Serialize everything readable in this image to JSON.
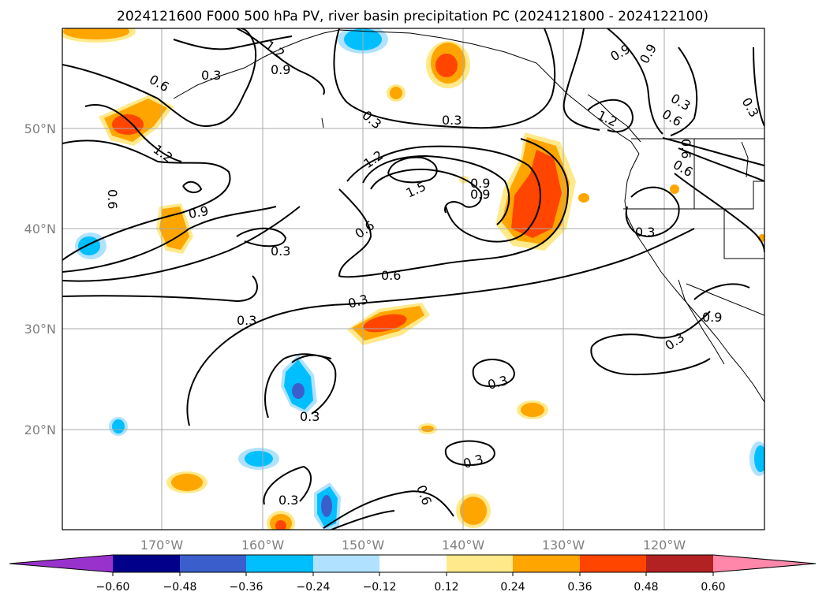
{
  "title": "2024121600 F000 500 hPa PV, river basin precipitation PC (2024121800 - 2024122100)",
  "lat_labels": [
    "50°N",
    "40°N",
    "30°N",
    "20°N"
  ],
  "lon_labels": [
    "170°W",
    "160°W",
    "150°W",
    "140°W",
    "130°W",
    "120°W"
  ],
  "colorbar": {
    "ticks": [
      "−0.60",
      "−0.48",
      "−0.36",
      "−0.24",
      "−0.12",
      "0.12",
      "0.24",
      "0.36",
      "0.48",
      "0.60"
    ],
    "colors": [
      "#9932cc",
      "#00008b",
      "#3a5fcd",
      "#00bfff",
      "#b0e2ff",
      "#ffffff",
      "#ffe98a",
      "#ffa500",
      "#ff4500",
      "#b22222",
      "#ff88aa"
    ]
  },
  "contour_labels": [
    "0.6",
    "0.3",
    "1.2",
    "0.9",
    "0.3",
    "0.6",
    "1.2",
    "0.9",
    "0.3",
    "0.6",
    "0.3",
    "1.2",
    "0.9",
    "1.5",
    "0.9",
    "0.6",
    "0.6",
    "0.3",
    "0.3",
    "0.3",
    "0.3",
    "0.3",
    "0.3",
    "0.3",
    "0.9",
    "0.6",
    "1.2",
    "0.6",
    "0.3",
    "0.6",
    "0.9",
    "0.9",
    "0.3",
    "0.3"
  ],
  "colors": {
    "grid": "#aaaaaa",
    "contour": "#000000",
    "positive_light": "#ffe98a",
    "positive_mid": "#ffa500",
    "positive_high": "#ff4500",
    "negative_light": "#b0e2ff",
    "negative_mid": "#00bfff",
    "negative_high": "#3a5fcd"
  }
}
